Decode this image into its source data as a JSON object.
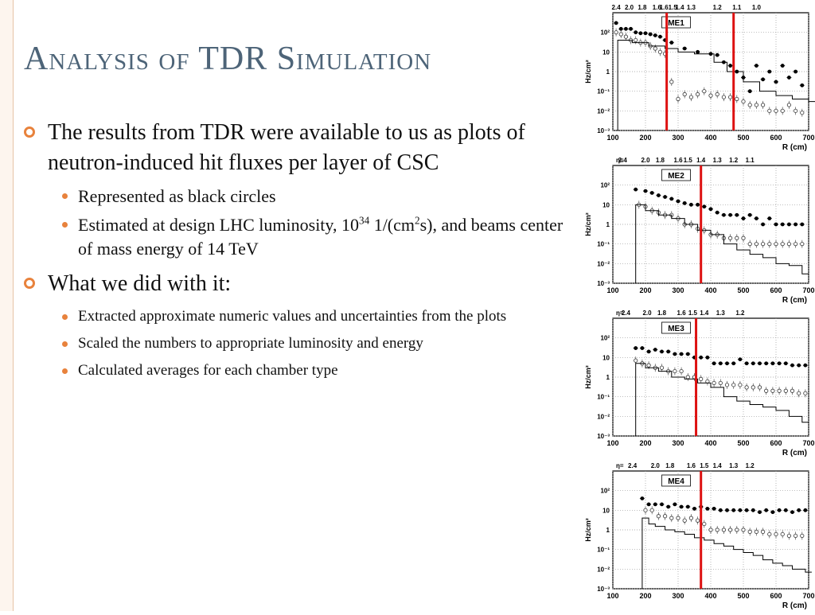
{
  "slide": {
    "title": "Analysis of TDR Simulation",
    "bullets": [
      {
        "text": "The results from TDR were available to us as plots of neutron-induced hit fluxes per layer of CSC",
        "sub": [
          {
            "text": "Represented as black circles"
          },
          {
            "pre": "Estimated at design LHC luminosity, 10",
            "sup1": "34",
            "mid": " 1/(cm",
            "sup2": "2",
            "post": "s), and beams center of mass energy of 14 TeV"
          }
        ]
      },
      {
        "text": "What we did with it:",
        "sub": [
          {
            "text": "Extracted approximate numeric values and uncertainties from the plots"
          },
          {
            "text": "Scaled the numbers to appropriate luminosity and energy"
          },
          {
            "text": "Calculated averages for each chamber type"
          }
        ]
      }
    ]
  },
  "colors": {
    "title": "#4d6478",
    "accent": "#e8823c",
    "cut_line": "#dd1111"
  },
  "chart_data": [
    {
      "type": "scatter",
      "title": "ME1",
      "xlabel": "R (cm)",
      "ylabel": "Hz/cm²",
      "xlim": [
        100,
        700
      ],
      "ylim": [
        -3,
        3
      ],
      "y_log": true,
      "x_ticks": [
        "100",
        "200",
        "300",
        "400",
        "500",
        "600",
        "700"
      ],
      "y_ticks": [
        "10⁻³",
        "10⁻²",
        "10⁻¹",
        "1",
        "10",
        "10²"
      ],
      "eta_prefix": "",
      "eta_labels": [
        "2.4",
        "2.0",
        "1.8",
        "1.6",
        "1.61.5",
        "1.4",
        "1.3",
        "1.2",
        "1.1",
        "1.0"
      ],
      "eta_positions": [
        110,
        150,
        190,
        235,
        270,
        305,
        340,
        420,
        480,
        540
      ],
      "cut_lines": [
        265,
        470
      ],
      "series": [
        {
          "style": "filled",
          "x": [
            110,
            125,
            140,
            155,
            170,
            185,
            200,
            215,
            230,
            245,
            260,
            280,
            320,
            360,
            400,
            420,
            440,
            460,
            480,
            500,
            520,
            540,
            560,
            580,
            600,
            620,
            640,
            660,
            680
          ],
          "y": [
            300,
            150,
            150,
            150,
            100,
            90,
            90,
            80,
            70,
            60,
            40,
            30,
            15,
            10,
            8,
            7,
            3,
            2,
            1,
            0.5,
            0.1,
            2,
            0.4,
            1,
            0.3,
            2,
            0.5,
            1,
            0.2
          ]
        },
        {
          "style": "open",
          "x": [
            110,
            125,
            140,
            155,
            170,
            185,
            200,
            215,
            230,
            245,
            260,
            280,
            300,
            320,
            340,
            360,
            380,
            400,
            420,
            440,
            460,
            480,
            500,
            520,
            540,
            560,
            580,
            600,
            620,
            640,
            660,
            680
          ],
          "y": [
            100,
            80,
            60,
            40,
            40,
            30,
            30,
            20,
            15,
            10,
            8,
            0.3,
            0.04,
            0.07,
            0.05,
            0.07,
            0.1,
            0.06,
            0.07,
            0.05,
            0.05,
            0.04,
            0.03,
            0.02,
            0.02,
            0.02,
            0.01,
            0.01,
            0.01,
            0.02,
            0.01,
            0.008
          ]
        },
        {
          "style": "step",
          "x": [
            115,
            160,
            210,
            260,
            300,
            350,
            410,
            450,
            500,
            550,
            600,
            650,
            700
          ],
          "y": [
            40,
            30,
            20,
            15,
            10,
            8,
            3,
            1,
            0.3,
            0.1,
            0.06,
            0.04,
            0.03
          ]
        }
      ]
    },
    {
      "type": "scatter",
      "title": "ME2",
      "xlabel": "R (cm)",
      "ylabel": "Hz/cm²",
      "xlim": [
        100,
        700
      ],
      "ylim": [
        -3,
        3
      ],
      "y_log": true,
      "x_ticks": [
        "100",
        "200",
        "300",
        "400",
        "500",
        "600",
        "700"
      ],
      "y_ticks": [
        "10⁻³",
        "10⁻²",
        "10⁻¹",
        "1",
        "10",
        "10²"
      ],
      "eta_prefix": "η=",
      "eta_labels": [
        "2.4",
        "2.0",
        "1.8",
        "1.6",
        "1.5",
        "1.4",
        "1.3",
        "1.2",
        "1.1"
      ],
      "eta_positions": [
        130,
        200,
        245,
        300,
        330,
        370,
        420,
        470,
        520
      ],
      "cut_lines": [
        370
      ],
      "series": [
        {
          "style": "filled",
          "x": [
            170,
            200,
            220,
            240,
            260,
            280,
            300,
            320,
            340,
            360,
            380,
            400,
            420,
            440,
            460,
            480,
            500,
            520,
            540,
            560,
            580,
            600,
            620,
            640,
            660,
            680
          ],
          "y": [
            60,
            50,
            40,
            30,
            25,
            20,
            15,
            12,
            10,
            10,
            8,
            6,
            4,
            3,
            3,
            3,
            2,
            3,
            2,
            1,
            2,
            1,
            1,
            1,
            1,
            1
          ]
        },
        {
          "style": "open",
          "x": [
            180,
            200,
            220,
            240,
            260,
            280,
            300,
            320,
            340,
            360,
            380,
            400,
            420,
            440,
            460,
            480,
            500,
            520,
            540,
            560,
            580,
            600,
            620,
            640,
            660,
            680
          ],
          "y": [
            10,
            8,
            5,
            4,
            3,
            3,
            2,
            1,
            1,
            0.6,
            0.5,
            0.3,
            0.3,
            0.2,
            0.2,
            0.2,
            0.2,
            0.1,
            0.1,
            0.1,
            0.1,
            0.1,
            0.1,
            0.1,
            0.1,
            0.1
          ]
        },
        {
          "style": "step",
          "x": [
            170,
            200,
            240,
            280,
            320,
            360,
            400,
            440,
            480,
            520,
            560,
            600,
            640,
            680
          ],
          "y": [
            10,
            5,
            3,
            2,
            1,
            0.5,
            0.3,
            0.1,
            0.05,
            0.03,
            0.02,
            0.01,
            0.008,
            0.003
          ]
        }
      ]
    },
    {
      "type": "scatter",
      "title": "ME3",
      "xlabel": "R (cm)",
      "ylabel": "Hz/cm²",
      "xlim": [
        100,
        700
      ],
      "ylim": [
        -3,
        3
      ],
      "y_log": true,
      "x_ticks": [
        "100",
        "200",
        "300",
        "400",
        "500",
        "600",
        "700"
      ],
      "y_ticks": [
        "10⁻³",
        "10⁻²",
        "10⁻¹",
        "1",
        "10",
        "10²"
      ],
      "eta_prefix": "η=",
      "eta_labels": [
        "2.4",
        "2.0",
        "1.8",
        "1.6",
        "1.5",
        "1.4",
        "1.3",
        "1.2"
      ],
      "eta_positions": [
        140,
        205,
        250,
        310,
        345,
        380,
        430,
        490
      ],
      "cut_lines": [
        355
      ],
      "series": [
        {
          "style": "filled",
          "x": [
            170,
            190,
            210,
            230,
            250,
            270,
            290,
            310,
            330,
            350,
            370,
            390,
            410,
            430,
            450,
            470,
            490,
            510,
            530,
            550,
            570,
            590,
            610,
            630,
            650,
            670,
            690
          ],
          "y": [
            30,
            30,
            20,
            25,
            20,
            20,
            15,
            15,
            15,
            10,
            10,
            10,
            5,
            5,
            5,
            5,
            8,
            5,
            5,
            5,
            5,
            5,
            5,
            5,
            4,
            4,
            4
          ]
        },
        {
          "style": "open",
          "x": [
            170,
            190,
            210,
            230,
            250,
            270,
            290,
            310,
            330,
            350,
            370,
            390,
            410,
            430,
            450,
            470,
            490,
            510,
            530,
            550,
            570,
            590,
            610,
            630,
            650,
            670,
            690
          ],
          "y": [
            7,
            5,
            4,
            3,
            3,
            2,
            2,
            2,
            1,
            1,
            0.8,
            0.6,
            0.5,
            0.5,
            0.4,
            0.4,
            0.4,
            0.3,
            0.3,
            0.3,
            0.2,
            0.2,
            0.2,
            0.2,
            0.2,
            0.15,
            0.15
          ]
        },
        {
          "style": "step",
          "x": [
            170,
            200,
            240,
            280,
            320,
            360,
            400,
            440,
            480,
            520,
            560,
            600,
            640,
            680
          ],
          "y": [
            5,
            3,
            2,
            1,
            0.8,
            0.5,
            0.3,
            0.1,
            0.06,
            0.04,
            0.03,
            0.02,
            0.01,
            0.005
          ]
        }
      ]
    },
    {
      "type": "scatter",
      "title": "ME4",
      "xlabel": "R (cm)",
      "ylabel": "Hz/cm²",
      "xlim": [
        100,
        700
      ],
      "ylim": [
        -3,
        3
      ],
      "y_log": true,
      "x_ticks": [
        "100",
        "200",
        "300",
        "400",
        "500",
        "600",
        "700"
      ],
      "y_ticks": [
        "10⁻³",
        "10⁻²",
        "10⁻¹",
        "1",
        "10",
        "10²"
      ],
      "eta_prefix": "η=",
      "eta_labels": [
        "2.4",
        "2.0",
        "1.8",
        "1.6",
        "1.5",
        "1.4",
        "1.3",
        "1.2"
      ],
      "eta_positions": [
        160,
        230,
        275,
        340,
        380,
        420,
        470,
        520
      ],
      "cut_lines": [
        370
      ],
      "series": [
        {
          "style": "filled",
          "x": [
            190,
            210,
            230,
            250,
            270,
            290,
            310,
            330,
            350,
            370,
            390,
            410,
            430,
            450,
            470,
            490,
            510,
            530,
            550,
            570,
            590,
            610,
            630,
            650,
            670,
            690
          ],
          "y": [
            40,
            20,
            20,
            20,
            15,
            20,
            15,
            15,
            12,
            15,
            12,
            12,
            10,
            10,
            10,
            10,
            10,
            10,
            8,
            10,
            8,
            10,
            10,
            8,
            10,
            10
          ]
        },
        {
          "style": "open",
          "x": [
            200,
            220,
            240,
            260,
            280,
            300,
            320,
            340,
            360,
            380,
            400,
            420,
            440,
            460,
            480,
            500,
            520,
            540,
            560,
            580,
            600,
            620,
            640,
            660,
            680
          ],
          "y": [
            10,
            10,
            5,
            5,
            4,
            4,
            3,
            4,
            3,
            2,
            1,
            1,
            1,
            1,
            1,
            1,
            0.8,
            0.8,
            0.8,
            0.6,
            0.6,
            0.6,
            0.5,
            0.5,
            0.5
          ]
        },
        {
          "style": "step",
          "x": [
            190,
            210,
            230,
            260,
            290,
            320,
            350,
            380,
            410,
            440,
            470,
            500,
            530,
            560,
            590,
            620,
            650,
            690
          ],
          "y": [
            4,
            2,
            1.5,
            1,
            0.8,
            0.6,
            0.4,
            0.3,
            0.2,
            0.15,
            0.1,
            0.07,
            0.05,
            0.03,
            0.02,
            0.015,
            0.01,
            0.007
          ]
        }
      ]
    }
  ]
}
